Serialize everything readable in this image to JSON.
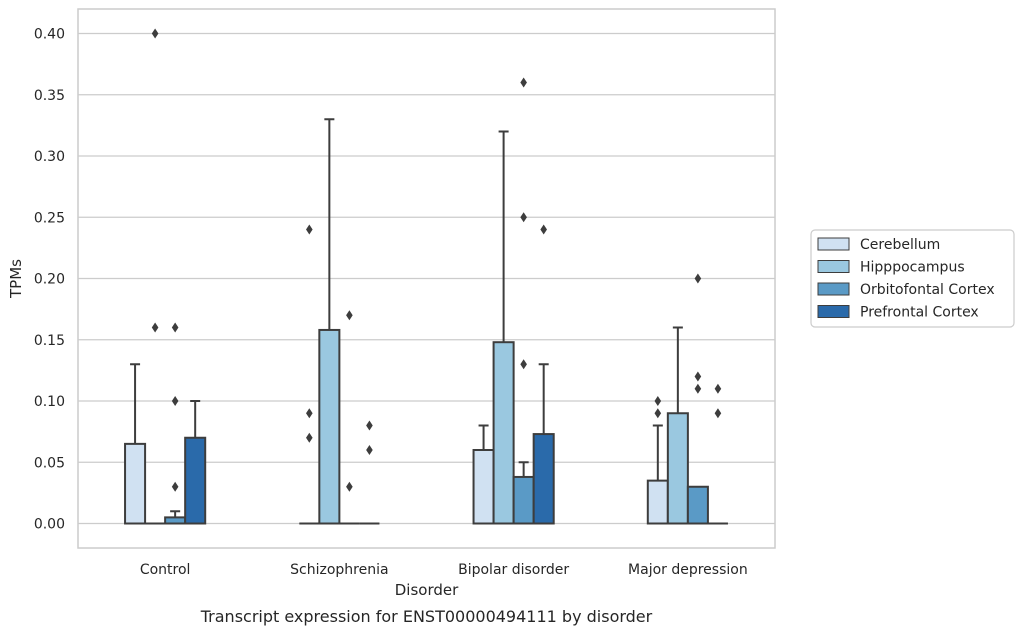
{
  "caption": "Transcript expression for ENST00000494111 by disorder",
  "chart_data": {
    "type": "box",
    "xlabel": "Disorder",
    "ylabel": "TPMs",
    "ylim": [
      -0.02,
      0.42
    ],
    "yticks": [
      "0.00",
      "0.05",
      "0.10",
      "0.15",
      "0.20",
      "0.25",
      "0.30",
      "0.35",
      "0.40"
    ],
    "ytick_values": [
      0,
      0.05,
      0.1,
      0.15,
      0.2,
      0.25,
      0.3,
      0.35,
      0.4
    ],
    "grid": true,
    "legend_position": "right",
    "categories": [
      "Control",
      "Schizophrenia",
      "Bipolar disorder",
      "Major depression"
    ],
    "series": [
      {
        "name": "Cerebellum",
        "color": "#d0e1f2",
        "boxes": [
          {
            "q1": 0,
            "q3": 0.065,
            "median": 0,
            "whisker_low": 0,
            "whisker_high": 0.13,
            "outliers": []
          },
          {
            "q1": 0,
            "q3": 0,
            "median": 0,
            "whisker_low": 0,
            "whisker_high": 0,
            "outliers": [
              0.24,
              0.09,
              0.07
            ]
          },
          {
            "q1": 0,
            "q3": 0.06,
            "median": 0,
            "whisker_low": 0,
            "whisker_high": 0.08,
            "outliers": []
          },
          {
            "q1": 0,
            "q3": 0.035,
            "median": 0,
            "whisker_low": 0,
            "whisker_high": 0.08,
            "outliers": [
              0.1,
              0.09
            ]
          }
        ]
      },
      {
        "name": "Hipppocampus",
        "color": "#9ac8e0",
        "boxes": [
          {
            "q1": 0,
            "q3": 0,
            "median": 0,
            "whisker_low": 0,
            "whisker_high": 0,
            "outliers": [
              0.4,
              0.16
            ]
          },
          {
            "q1": 0,
            "q3": 0.158,
            "median": 0,
            "whisker_low": 0,
            "whisker_high": 0.33,
            "outliers": []
          },
          {
            "q1": 0,
            "q3": 0.148,
            "median": 0,
            "whisker_low": 0,
            "whisker_high": 0.32,
            "outliers": []
          },
          {
            "q1": 0,
            "q3": 0.09,
            "median": 0,
            "whisker_low": 0,
            "whisker_high": 0.16,
            "outliers": []
          }
        ]
      },
      {
        "name": "Orbitofontal Cortex",
        "color": "#5a9ac6",
        "boxes": [
          {
            "q1": 0,
            "q3": 0.005,
            "median": 0,
            "whisker_low": 0,
            "whisker_high": 0.01,
            "outliers": [
              0.16,
              0.1,
              0.03
            ]
          },
          {
            "q1": 0,
            "q3": 0,
            "median": 0,
            "whisker_low": 0,
            "whisker_high": 0,
            "outliers": [
              0.17,
              0.03
            ]
          },
          {
            "q1": 0,
            "q3": 0.038,
            "median": 0,
            "whisker_low": 0,
            "whisker_high": 0.05,
            "outliers": [
              0.36,
              0.25,
              0.13
            ]
          },
          {
            "q1": 0,
            "q3": 0.03,
            "median": 0,
            "whisker_low": 0,
            "whisker_high": 0.03,
            "outliers": [
              0.2,
              0.12,
              0.11
            ]
          }
        ]
      },
      {
        "name": "Prefrontal Cortex",
        "color": "#2a6aaa",
        "boxes": [
          {
            "q1": 0,
            "q3": 0.07,
            "median": 0,
            "whisker_low": 0,
            "whisker_high": 0.1,
            "outliers": []
          },
          {
            "q1": 0,
            "q3": 0,
            "median": 0,
            "whisker_low": 0,
            "whisker_high": 0,
            "outliers": [
              0.08,
              0.06
            ]
          },
          {
            "q1": 0,
            "q3": 0.073,
            "median": 0,
            "whisker_low": 0,
            "whisker_high": 0.13,
            "outliers": [
              0.24
            ]
          },
          {
            "q1": 0,
            "q3": 0,
            "median": 0,
            "whisker_low": 0,
            "whisker_high": 0,
            "outliers": [
              0.11,
              0.09
            ]
          }
        ]
      }
    ]
  }
}
